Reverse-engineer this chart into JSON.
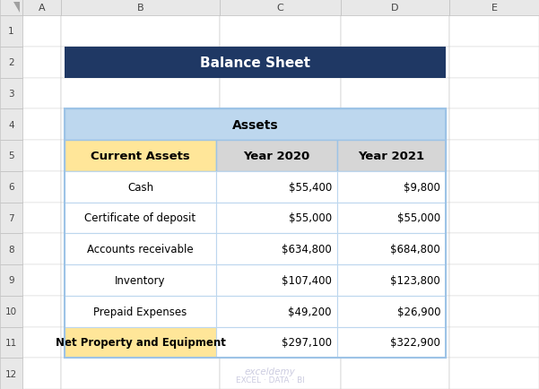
{
  "title": "Balance Sheet",
  "title_bg": "#1F3864",
  "title_color": "#FFFFFF",
  "title_fontsize": 11,
  "assets_header": "Assets",
  "assets_header_bg": "#BDD7EE",
  "assets_header_color": "#000000",
  "col_header_bg": "#FFE699",
  "col_header_color": "#000000",
  "year_header_bg": "#D6D6D6",
  "year_header_color": "#000000",
  "row_bg": "#FFFFFF",
  "row_color": "#000000",
  "last_row_bg": "#FFE699",
  "last_row_color": "#000000",
  "table_border_color": "#9DC3E6",
  "inner_border_color": "#BDD7EE",
  "excel_header_bg": "#E8E8E8",
  "excel_header_border": "#BFBFBF",
  "excel_bg": "#FFFFFF",
  "row_num_bg": "#F2F2F2",
  "col_headers_excel": [
    "A",
    "B",
    "C",
    "D",
    "E"
  ],
  "row_numbers": [
    "1",
    "2",
    "3",
    "4",
    "5",
    "6",
    "7",
    "8",
    "9",
    "10",
    "11",
    "12"
  ],
  "col_headers": [
    "Current Assets",
    "Year 2020",
    "Year 2021"
  ],
  "rows": [
    [
      "Cash",
      "$55,400",
      "$9,800"
    ],
    [
      "Certificate of deposit",
      "$55,000",
      "$55,000"
    ],
    [
      "Accounts receivable",
      "$634,800",
      "$684,800"
    ],
    [
      "Inventory",
      "$107,400",
      "$123,800"
    ],
    [
      "Prepaid Expenses",
      "$49,200",
      "$26,900"
    ],
    [
      "Net Property and Equipment",
      "$297,100",
      "$322,900"
    ]
  ],
  "watermark_color": "#AAAACC",
  "font_family": "DejaVu Sans"
}
